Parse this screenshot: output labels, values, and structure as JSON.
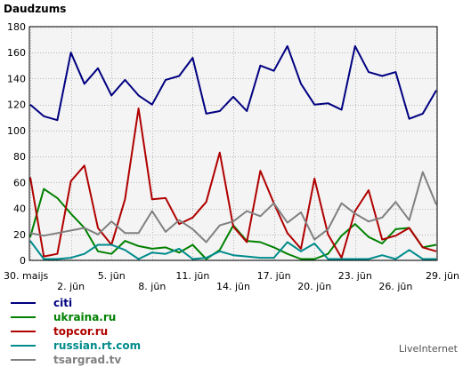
{
  "title": "Daudzums",
  "brand": "LiveInternet",
  "chart_data": {
    "type": "line",
    "title": "Daudzums",
    "xlabel": "",
    "ylabel": "",
    "ylim": [
      0,
      180
    ],
    "yticks": [
      0,
      20,
      40,
      60,
      80,
      100,
      120,
      140,
      160,
      180
    ],
    "grid": true,
    "legend_position": "bottom-left",
    "x_labels": [
      {
        "index": 0,
        "label": "30. maijs"
      },
      {
        "index": 3,
        "label": "2. jūn"
      },
      {
        "index": 6,
        "label": "5. jūn"
      },
      {
        "index": 9,
        "label": "8. jūn"
      },
      {
        "index": 12,
        "label": "11. jūn"
      },
      {
        "index": 15,
        "label": "14. jūn"
      },
      {
        "index": 18,
        "label": "17. jūn"
      },
      {
        "index": 21,
        "label": "20. jūn"
      },
      {
        "index": 24,
        "label": "23. jūn"
      },
      {
        "index": 27,
        "label": "26. jūn"
      },
      {
        "index": 30,
        "label": "29. jūn"
      }
    ],
    "series": [
      {
        "name": "citi",
        "color": "#000080",
        "values": [
          120,
          111,
          108,
          160,
          136,
          148,
          127,
          139,
          127,
          120,
          139,
          142,
          156,
          113,
          115,
          126,
          115,
          150,
          146,
          165,
          136,
          120,
          121,
          116,
          165,
          145,
          142,
          145,
          109,
          113,
          131
        ]
      },
      {
        "name": "ukraina.ru",
        "color": "#008000",
        "values": [
          18,
          55,
          48,
          36,
          25,
          7,
          5,
          15,
          11,
          9,
          10,
          6,
          12,
          1,
          8,
          27,
          15,
          14,
          10,
          5,
          1,
          1,
          5,
          19,
          28,
          18,
          13,
          24,
          25,
          10,
          12
        ]
      },
      {
        "name": "topcor.ru",
        "color": "#b00000",
        "values": [
          64,
          3,
          5,
          61,
          73,
          25,
          12,
          47,
          117,
          47,
          48,
          28,
          33,
          45,
          83,
          26,
          14,
          69,
          44,
          21,
          9,
          63,
          20,
          2,
          38,
          54,
          16,
          19,
          25,
          10,
          7
        ]
      },
      {
        "name": "russian.rt.com",
        "color": "#008b8b",
        "values": [
          15,
          1,
          1,
          2,
          5,
          12,
          12,
          8,
          1,
          6,
          5,
          9,
          1,
          2,
          7,
          4,
          3,
          2,
          2,
          14,
          7,
          13,
          1,
          1,
          1,
          1,
          4,
          1,
          8,
          1,
          1
        ]
      },
      {
        "name": "tsargrad.tv",
        "color": "#808080",
        "values": [
          21,
          19,
          21,
          23,
          25,
          20,
          30,
          21,
          21,
          38,
          22,
          31,
          24,
          14,
          27,
          30,
          38,
          34,
          44,
          29,
          37,
          16,
          24,
          44,
          36,
          30,
          33,
          45,
          31,
          68,
          43
        ]
      }
    ]
  }
}
